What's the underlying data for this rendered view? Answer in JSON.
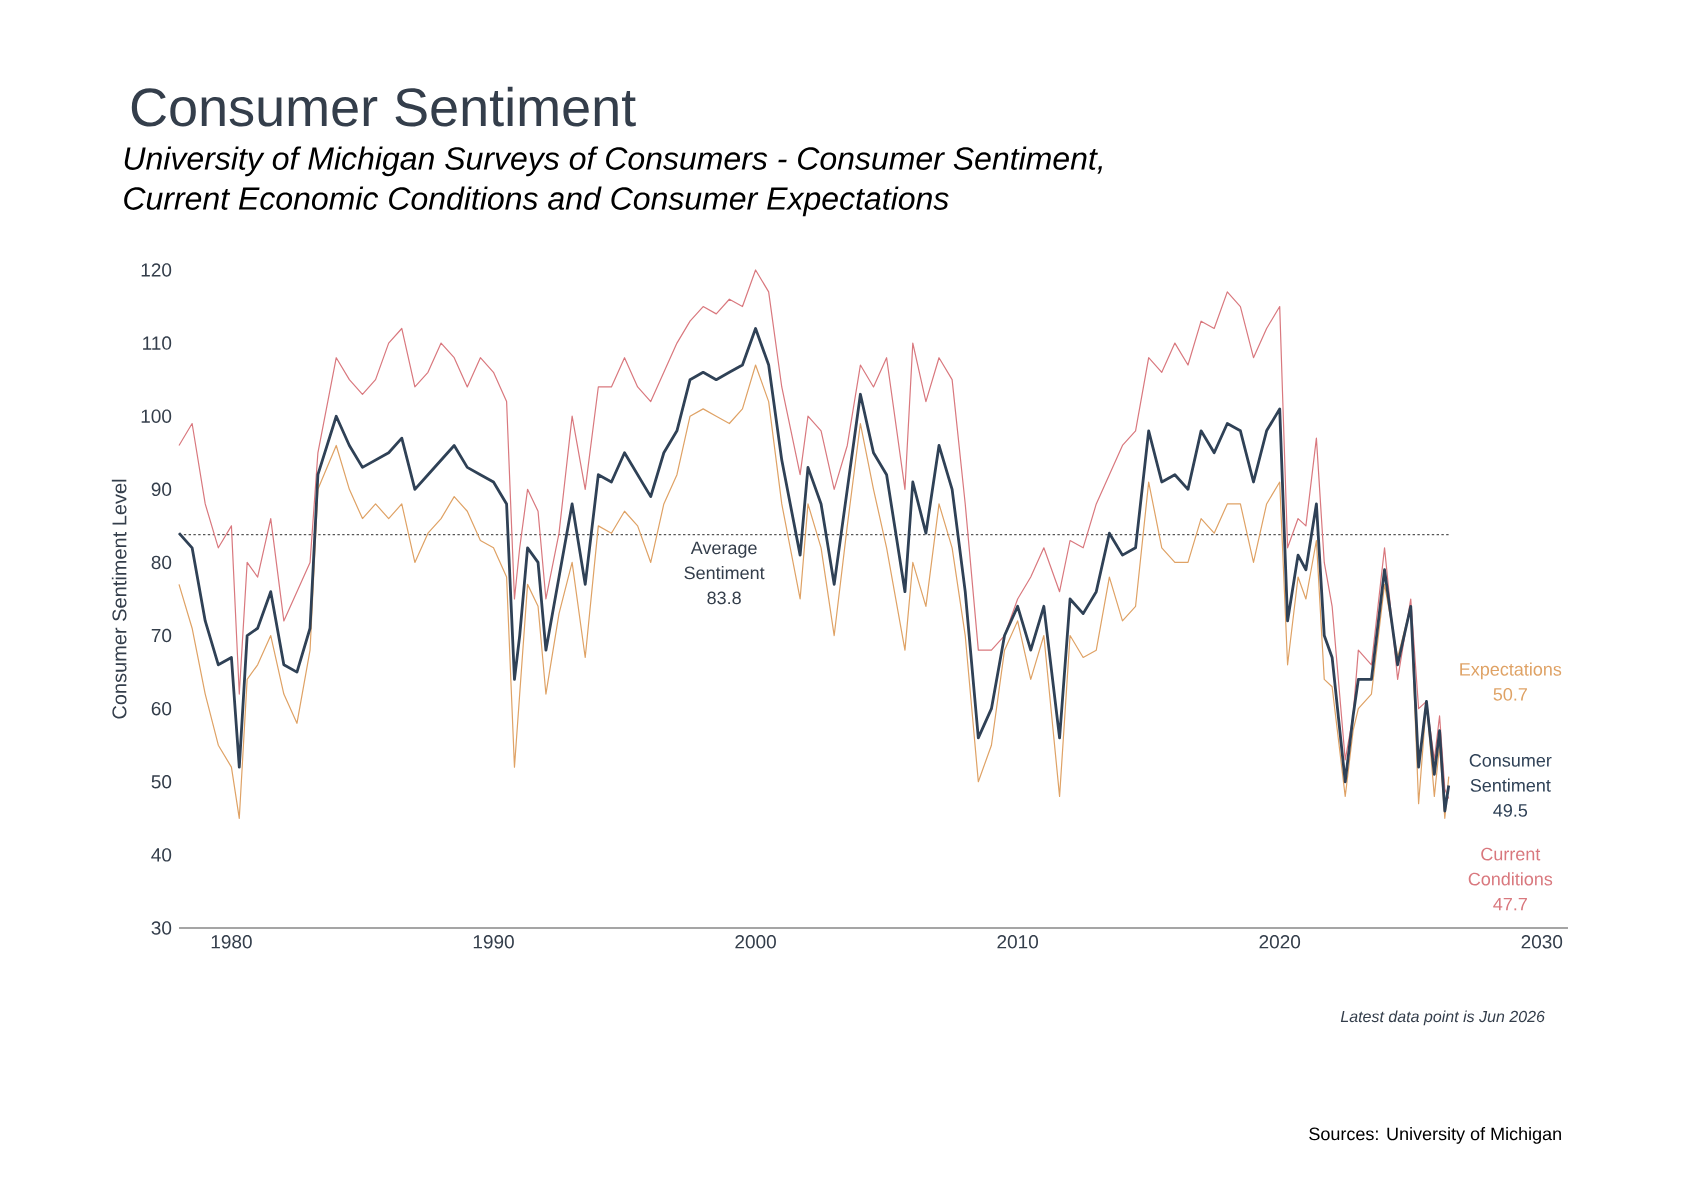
{
  "chart_data": {
    "type": "line",
    "title": "Consumer Sentiment",
    "subtitle": "University of Michigan Surveys of Consumers - Consumer Sentiment, Current Economic Conditions and Consumer Expectations",
    "ylabel": "Consumer Sentiment Level",
    "x": [
      1978,
      1978.5,
      1979,
      1979.5,
      1980,
      1980.3,
      1980.6,
      1981,
      1981.5,
      1982,
      1982.5,
      1983,
      1983.3,
      1984,
      1984.5,
      1985,
      1985.5,
      1986,
      1986.5,
      1987,
      1987.5,
      1988,
      1988.5,
      1989,
      1989.5,
      1990,
      1990.5,
      1990.8,
      1991,
      1991.3,
      1991.7,
      1992,
      1992.5,
      1993,
      1993.5,
      1994,
      1994.5,
      1995,
      1995.5,
      1996,
      1996.5,
      1997,
      1997.5,
      1998,
      1998.5,
      1999,
      1999.5,
      2000,
      2000.5,
      2001,
      2001.7,
      2002,
      2002.5,
      2003,
      2003.5,
      2004,
      2004.5,
      2005,
      2005.7,
      2006,
      2006.5,
      2007,
      2007.5,
      2008,
      2008.5,
      2009,
      2009.5,
      2010,
      2010.5,
      2011,
      2011.6,
      2012,
      2012.5,
      2013,
      2013.5,
      2014,
      2014.5,
      2015,
      2015.5,
      2016,
      2016.5,
      2017,
      2017.5,
      2018,
      2018.5,
      2019,
      2019.5,
      2020,
      2020.3,
      2020.7,
      2021,
      2021.4,
      2021.7,
      2022,
      2022.5,
      2022.8,
      2023,
      2023.5,
      2024,
      2024.5,
      2025,
      2025.3,
      2025.6,
      2025.9,
      2026.1,
      2026.3,
      2026.45
    ],
    "series": [
      {
        "name": "Current Conditions",
        "color": "#d9787e",
        "values": [
          96,
          99,
          88,
          82,
          85,
          62,
          80,
          78,
          86,
          72,
          76,
          80,
          95,
          108,
          105,
          103,
          105,
          110,
          112,
          104,
          106,
          110,
          108,
          104,
          108,
          106,
          102,
          75,
          82,
          90,
          87,
          75,
          84,
          100,
          90,
          104,
          104,
          108,
          104,
          102,
          106,
          110,
          113,
          115,
          114,
          116,
          115,
          120,
          117,
          104,
          92,
          100,
          98,
          90,
          96,
          107,
          104,
          108,
          90,
          110,
          102,
          108,
          105,
          88,
          68,
          68,
          70,
          75,
          78,
          82,
          76,
          83,
          82,
          88,
          92,
          96,
          98,
          108,
          106,
          110,
          107,
          113,
          112,
          117,
          115,
          108,
          112,
          115,
          82,
          86,
          85,
          97,
          80,
          74,
          53,
          59,
          68,
          66,
          82,
          64,
          75,
          60,
          61,
          53,
          59,
          49,
          47.7
        ]
      },
      {
        "name": "Expectations",
        "color": "#dfa265",
        "values": [
          77,
          71,
          62,
          55,
          52,
          45,
          64,
          66,
          70,
          62,
          58,
          68,
          90,
          96,
          90,
          86,
          88,
          86,
          88,
          80,
          84,
          86,
          89,
          87,
          83,
          82,
          78,
          52,
          62,
          77,
          74,
          62,
          73,
          80,
          67,
          85,
          84,
          87,
          85,
          80,
          88,
          92,
          100,
          101,
          100,
          99,
          101,
          107,
          102,
          88,
          75,
          88,
          82,
          70,
          85,
          99,
          90,
          82,
          68,
          80,
          74,
          88,
          82,
          70,
          50,
          55,
          68,
          72,
          64,
          70,
          48,
          70,
          67,
          68,
          78,
          72,
          74,
          91,
          82,
          80,
          80,
          86,
          84,
          88,
          88,
          80,
          88,
          91,
          66,
          78,
          75,
          83,
          64,
          63,
          48,
          57,
          60,
          62,
          77,
          67,
          74,
          47,
          61,
          48,
          55,
          45,
          50.7
        ]
      },
      {
        "name": "Consumer Sentiment",
        "color": "#2f4156",
        "values": [
          84,
          82,
          72,
          66,
          67,
          52,
          70,
          71,
          76,
          66,
          65,
          71,
          92,
          100,
          96,
          93,
          94,
          95,
          97,
          90,
          92,
          94,
          96,
          93,
          92,
          91,
          88,
          64,
          70,
          82,
          80,
          68,
          78,
          88,
          77,
          92,
          91,
          95,
          92,
          89,
          95,
          98,
          105,
          106,
          105,
          106,
          107,
          112,
          107,
          94,
          81,
          93,
          88,
          77,
          90,
          103,
          95,
          92,
          76,
          91,
          84,
          96,
          90,
          76,
          56,
          60,
          70,
          74,
          68,
          74,
          56,
          75,
          73,
          76,
          84,
          81,
          82,
          98,
          91,
          92,
          90,
          98,
          95,
          99,
          98,
          91,
          98,
          101,
          72,
          81,
          79,
          88,
          70,
          67,
          50,
          59,
          64,
          64,
          79,
          66,
          74,
          52,
          61,
          51,
          57,
          46,
          49.5
        ]
      }
    ],
    "xlim": [
      1978,
      2031
    ],
    "ylim": [
      30,
      120
    ],
    "xticks": [
      1980,
      1990,
      2000,
      2010,
      2020,
      2030
    ],
    "yticks": [
      30,
      40,
      50,
      60,
      70,
      80,
      90,
      100,
      110,
      120
    ],
    "ref_lines": [
      {
        "axis": "y",
        "value": 83.8,
        "label": "Average Sentiment 83.8",
        "line_style": "dotted",
        "color": "#555555"
      }
    ],
    "annotations": [
      "Latest data point is Jun 2026",
      "Sources: University of Michigan",
      "47.7",
      "50.7",
      "49.5"
    ]
  }
}
